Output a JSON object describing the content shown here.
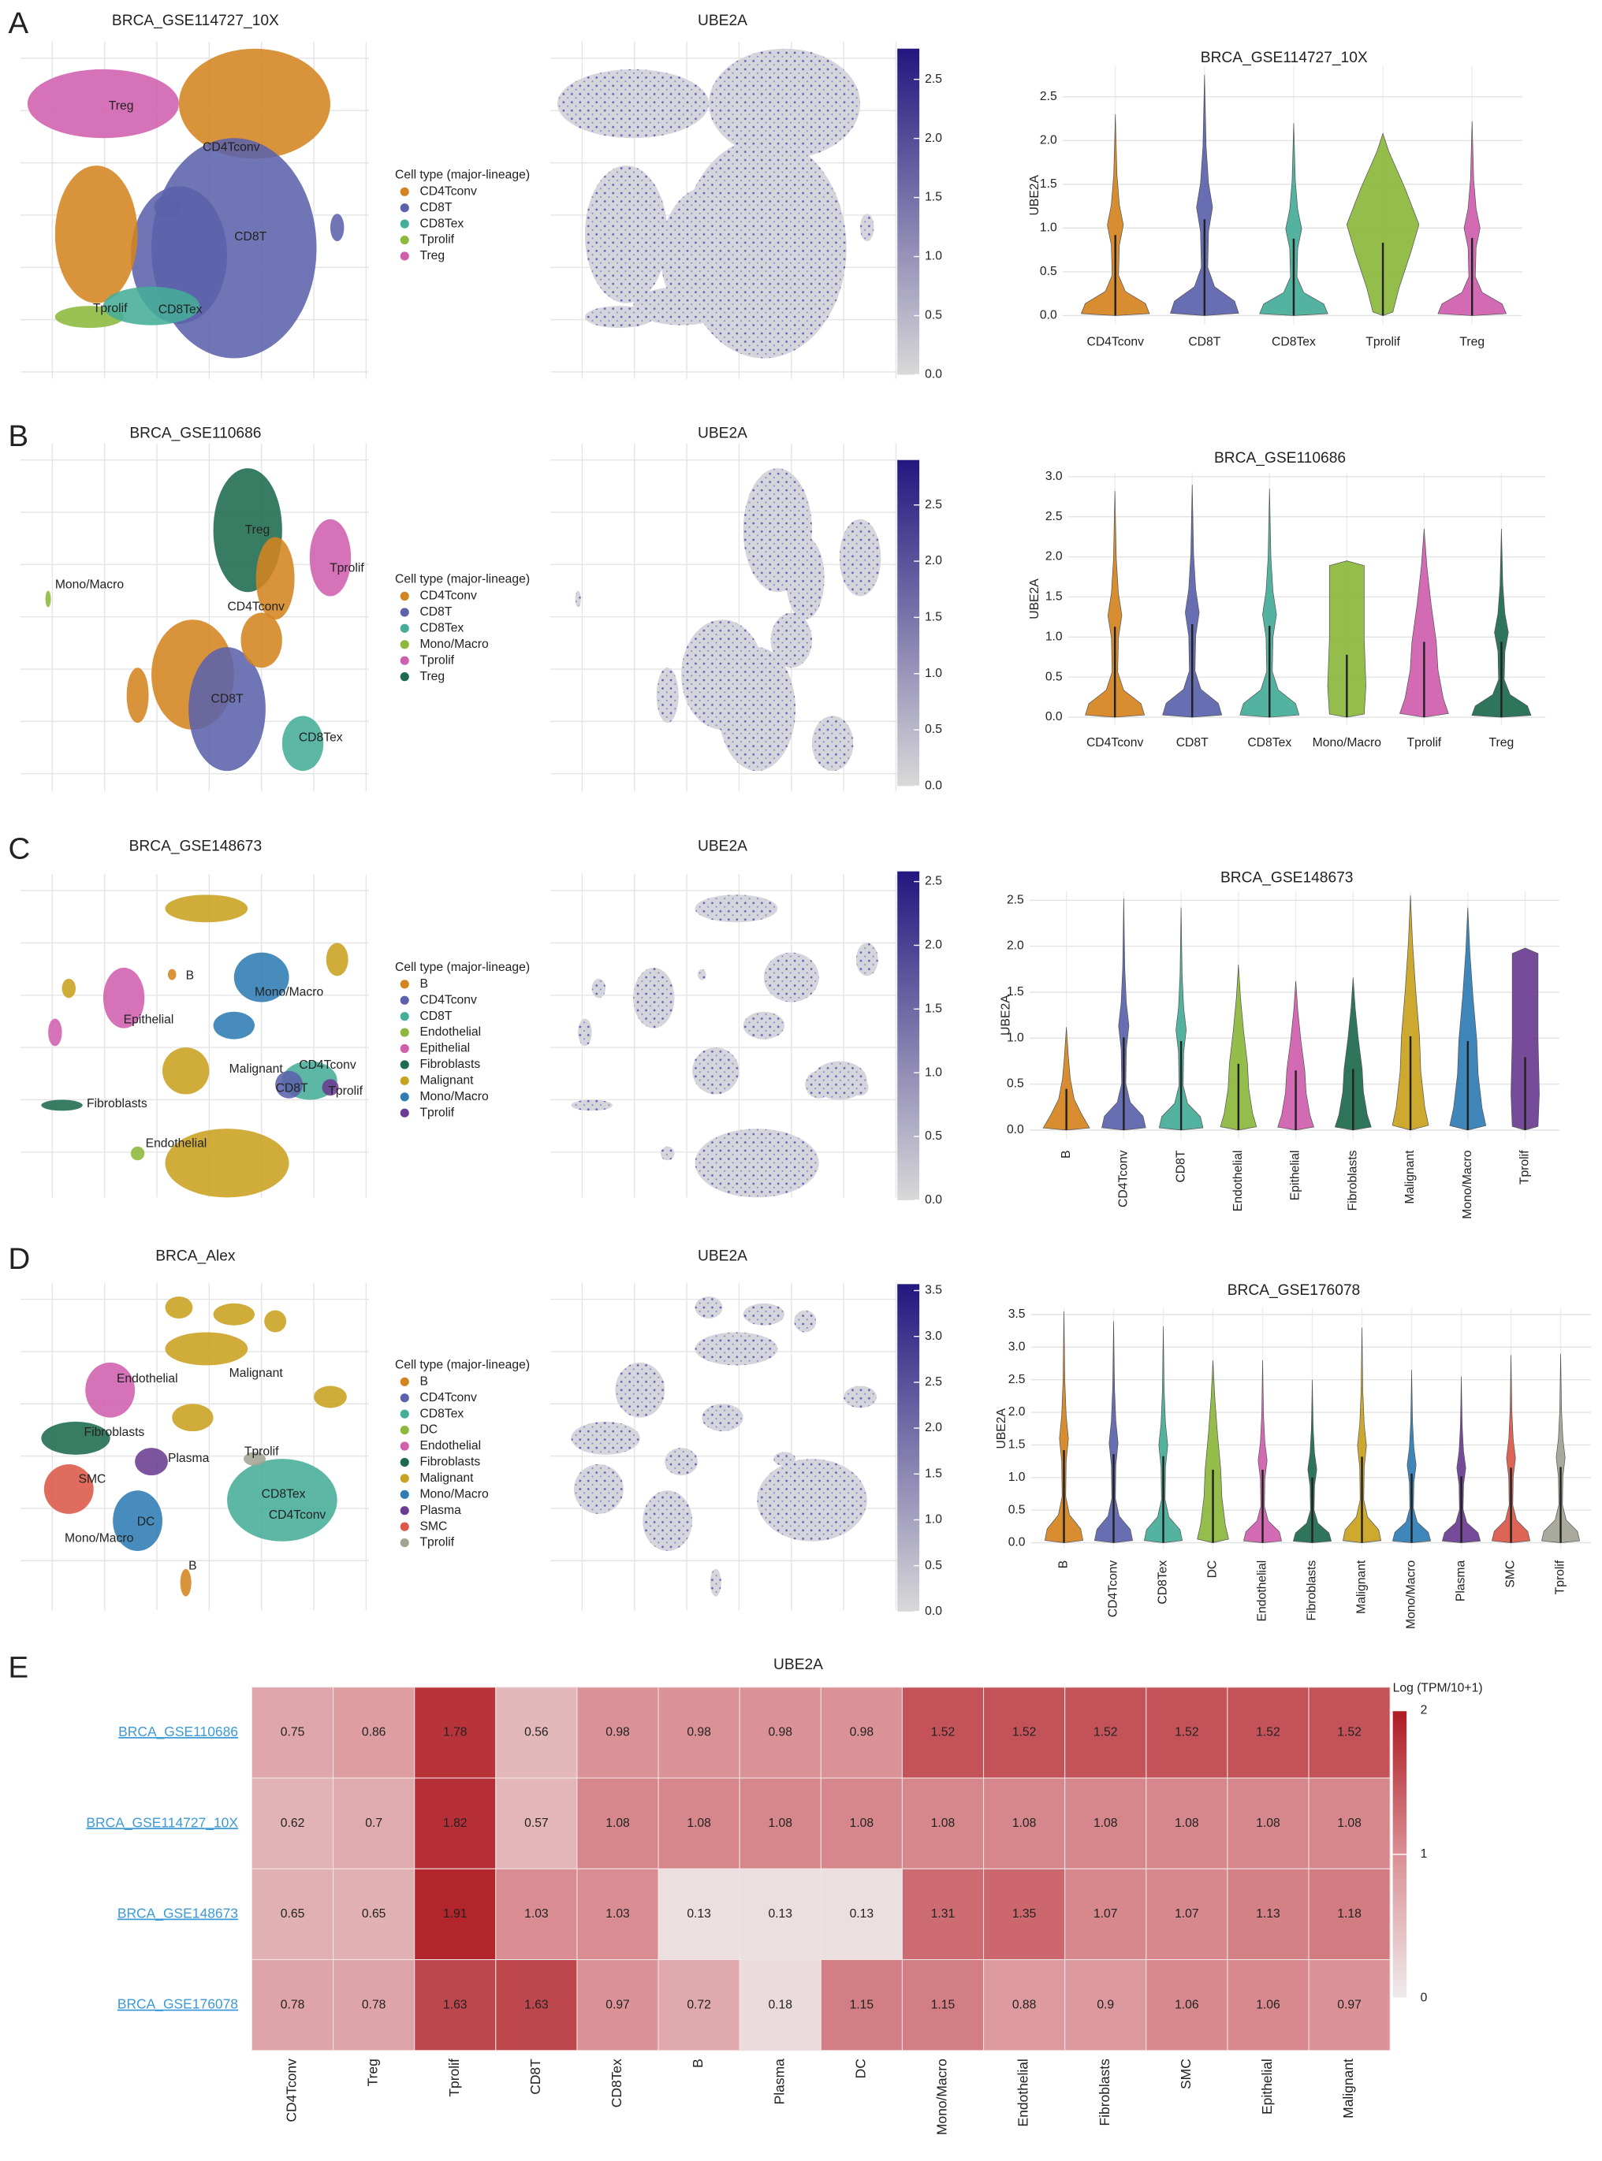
{
  "chart_data": [
    {
      "type": "umap",
      "panel_label": "A",
      "title": "BRCA_GSE114727_10X",
      "legend_title": "Cell type (major-lineage)",
      "series": [
        {
          "name": "CD4Tconv",
          "color": "#d4841f"
        },
        {
          "name": "CD8T",
          "color": "#5b62ab"
        },
        {
          "name": "CD8Tex",
          "color": "#45ad98"
        },
        {
          "name": "Tprolif",
          "color": "#8cb83c"
        },
        {
          "name": "Treg",
          "color": "#d05fae"
        }
      ],
      "cluster_labels": [
        "Treg",
        "CD4Tconv",
        "CD8T",
        "Tprolif",
        "CD8Tex"
      ]
    },
    {
      "type": "feature",
      "title": "UBE2A",
      "clim": [
        0,
        2.76
      ],
      "colors": [
        "#d9d9d9",
        "#22177f"
      ],
      "cticks": [
        {
          "value": 0,
          "label": "0.0"
        },
        0.5,
        {
          "value": 1,
          "label": "1.0"
        },
        1.5,
        {
          "value": 2,
          "label": "2.0"
        },
        2.5
      ]
    },
    {
      "type": "violin",
      "title": "BRCA_GSE114727_10X",
      "ylabel": "UBE2A",
      "rotate_labels": false,
      "categories": [
        "CD4Tconv",
        "CD8T",
        "CD8Tex",
        "Tprolif",
        "Treg"
      ],
      "colors": [
        "#d4841f",
        "#5b62ab",
        "#45ad98",
        "#8cb83c",
        "#d05fae"
      ],
      "values": [
        2.3,
        2.75,
        2.2,
        2.08,
        2.22
      ],
      "ylim": [
        -0.1,
        2.85
      ],
      "yticks": [
        {
          "value": 0,
          "label": "0.0"
        },
        0.5,
        {
          "value": 1,
          "label": "1.0"
        },
        1.5,
        {
          "value": 2,
          "label": "2.0"
        },
        2.5
      ],
      "grid": true
    },
    {
      "type": "umap",
      "panel_label": "B",
      "title": "BRCA_GSE110686",
      "legend_title": "Cell type (major-lineage)",
      "series": [
        {
          "name": "CD4Tconv",
          "color": "#d4841f"
        },
        {
          "name": "CD8T",
          "color": "#5b62ab"
        },
        {
          "name": "CD8Tex",
          "color": "#45ad98"
        },
        {
          "name": "Mono/Macro",
          "color": "#8cb83c"
        },
        {
          "name": "Tprolif",
          "color": "#d05fae"
        },
        {
          "name": "Treg",
          "color": "#1e6a4f"
        }
      ],
      "cluster_labels": [
        "Treg",
        "Tprolif",
        "Mono/Macro",
        "CD4Tconv",
        "CD8T",
        "CD8Tex"
      ]
    },
    {
      "type": "feature",
      "title": "UBE2A",
      "clim": [
        0,
        2.9
      ],
      "colors": [
        "#d9d9d9",
        "#22177f"
      ],
      "cticks": [
        {
          "value": 0,
          "label": "0.0"
        },
        0.5,
        {
          "value": 1,
          "label": "1.0"
        },
        1.5,
        {
          "value": 2,
          "label": "2.0"
        },
        2.5
      ]
    },
    {
      "type": "violin",
      "title": "BRCA_GSE110686",
      "ylabel": "UBE2A",
      "rotate_labels": false,
      "categories": [
        "CD4Tconv",
        "CD8T",
        "CD8Tex",
        "Mono/Macro",
        "Tprolif",
        "Treg"
      ],
      "colors": [
        "#d4841f",
        "#5b62ab",
        "#45ad98",
        "#8cb83c",
        "#d05fae",
        "#1e6a4f"
      ],
      "values": [
        2.82,
        2.9,
        2.85,
        1.95,
        2.35,
        2.35
      ],
      "ylim": [
        -0.1,
        3.05
      ],
      "yticks": [
        {
          "value": 0,
          "label": "0.0"
        },
        0.5,
        {
          "value": 1,
          "label": "1.0"
        },
        1.5,
        {
          "value": 2,
          "label": "2.0"
        },
        2.5,
        {
          "value": 3,
          "label": "3.0"
        }
      ],
      "grid": true
    },
    {
      "type": "umap",
      "panel_label": "C",
      "title": "BRCA_GSE148673",
      "legend_title": "Cell type (major-lineage)",
      "series": [
        {
          "name": "B",
          "color": "#d4841f"
        },
        {
          "name": "CD4Tconv",
          "color": "#5b62ab"
        },
        {
          "name": "CD8T",
          "color": "#45ad98"
        },
        {
          "name": "Endothelial",
          "color": "#8cb83c"
        },
        {
          "name": "Epithelial",
          "color": "#d05fae"
        },
        {
          "name": "Fibroblasts",
          "color": "#1e6a4f"
        },
        {
          "name": "Malignant",
          "color": "#c9a21f"
        },
        {
          "name": "Mono/Macro",
          "color": "#2f7cb5"
        },
        {
          "name": "Tprolif",
          "color": "#6b3c91"
        }
      ],
      "cluster_labels": [
        "B",
        "Mono/Macro",
        "Epithelial",
        "Malignant",
        "CD4Tconv",
        "CD8T",
        "Tprolif",
        "Fibroblasts",
        "Endothelial"
      ]
    },
    {
      "type": "feature",
      "title": "UBE2A",
      "clim": [
        0,
        2.58
      ],
      "colors": [
        "#d9d9d9",
        "#22177f"
      ],
      "cticks": [
        {
          "value": 0,
          "label": "0.0"
        },
        0.5,
        {
          "value": 1,
          "label": "1.0"
        },
        1.5,
        {
          "value": 2,
          "label": "2.0"
        },
        2.5
      ]
    },
    {
      "type": "violin",
      "title": "BRCA_GSE148673",
      "ylabel": "UBE2A",
      "rotate_labels": true,
      "categories": [
        "B",
        "CD4Tconv",
        "CD8T",
        "Endothelial",
        "Epithelial",
        "Fibroblasts",
        "Malignant",
        "Mono/Macro",
        "Tprolif"
      ],
      "colors": [
        "#d4841f",
        "#5b62ab",
        "#45ad98",
        "#8cb83c",
        "#d05fae",
        "#1e6a4f",
        "#c9a21f",
        "#2f7cb5",
        "#6b3c91"
      ],
      "values": [
        1.12,
        2.52,
        2.42,
        1.8,
        1.62,
        1.66,
        2.55,
        2.42,
        1.98
      ],
      "ylim": [
        -0.1,
        2.6
      ],
      "yticks": [
        {
          "value": 0,
          "label": "0.0"
        },
        0.5,
        {
          "value": 1,
          "label": "1.0"
        },
        1.5,
        {
          "value": 2,
          "label": "2.0"
        },
        2.5
      ],
      "grid": true
    },
    {
      "type": "umap",
      "panel_label": "D",
      "title": "BRCA_Alex",
      "legend_title": "Cell type (major-lineage)",
      "series": [
        {
          "name": "B",
          "color": "#d4841f"
        },
        {
          "name": "CD4Tconv",
          "color": "#5b62ab"
        },
        {
          "name": "CD8Tex",
          "color": "#45ad98"
        },
        {
          "name": "DC",
          "color": "#8cb83c"
        },
        {
          "name": "Endothelial",
          "color": "#d05fae"
        },
        {
          "name": "Fibroblasts",
          "color": "#1e6a4f"
        },
        {
          "name": "Malignant",
          "color": "#c9a21f"
        },
        {
          "name": "Mono/Macro",
          "color": "#2f7cb5"
        },
        {
          "name": "Plasma",
          "color": "#6b3c91"
        },
        {
          "name": "SMC",
          "color": "#dc5848"
        },
        {
          "name": "Tprolif",
          "color": "#a3a394"
        }
      ],
      "cluster_labels": [
        "Endothelial",
        "Malignant",
        "Fibroblasts",
        "Plasma",
        "Tprolif",
        "SMC",
        "CD8Tex",
        "DC",
        "CD4Tconv",
        "Mono/Macro",
        "B"
      ]
    },
    {
      "type": "feature",
      "title": "UBE2A",
      "clim": [
        0,
        3.57
      ],
      "colors": [
        "#d9d9d9",
        "#22177f"
      ],
      "cticks": [
        {
          "value": 0,
          "label": "0.0"
        },
        0.5,
        {
          "value": 1,
          "label": "1.0"
        },
        1.5,
        {
          "value": 2,
          "label": "2.0"
        },
        2.5,
        {
          "value": 3,
          "label": "3.0"
        },
        3.5
      ]
    },
    {
      "type": "violin",
      "title": "BRCA_GSE176078",
      "ylabel": "UBE2A",
      "rotate_labels": true,
      "categories": [
        "B",
        "CD4Tconv",
        "CD8Tex",
        "DC",
        "Endothelial",
        "Fibroblasts",
        "Malignant",
        "Mono/Macro",
        "Plasma",
        "SMC",
        "Tprolif"
      ],
      "colors": [
        "#d4841f",
        "#5b62ab",
        "#45ad98",
        "#8cb83c",
        "#d05fae",
        "#1e6a4f",
        "#c9a21f",
        "#2f7cb5",
        "#6b3c91",
        "#dc5848",
        "#a3a394"
      ],
      "values": [
        3.55,
        3.4,
        3.32,
        2.8,
        2.8,
        2.5,
        3.3,
        2.65,
        2.55,
        2.88,
        2.9
      ],
      "ylim": [
        -0.1,
        3.6
      ],
      "yticks": [
        {
          "value": 0,
          "label": "0.0"
        },
        0.5,
        {
          "value": 1,
          "label": "1.0"
        },
        1.5,
        {
          "value": 2,
          "label": "2.0"
        },
        2.5,
        {
          "value": 3,
          "label": "3.0"
        },
        3.5
      ],
      "grid": true
    },
    {
      "type": "heatmap",
      "panel_label": "E",
      "title": "UBE2A",
      "legend_title": "Log (TPM/10+1)",
      "rows": [
        "BRCA_GSE110686",
        "BRCA_GSE114727_10X",
        "BRCA_GSE148673",
        "BRCA_GSE176078"
      ],
      "columns": [
        "CD4Tconv",
        "Treg",
        "Tprolif",
        "CD8T",
        "CD8Tex",
        "B",
        "Plasma",
        "DC",
        "Mono/Macro",
        "Endothelial",
        "Fibroblasts",
        "SMC",
        "Epithelial",
        "Malignant"
      ],
      "values": [
        [
          0.75,
          0.86,
          1.78,
          0.56,
          0.98,
          0.98,
          0.98,
          0.98,
          1.52,
          1.52,
          1.52,
          1.52,
          1.52,
          1.52
        ],
        [
          0.62,
          0.7,
          1.82,
          0.57,
          1.08,
          1.08,
          1.08,
          1.08,
          1.08,
          1.08,
          1.08,
          1.08,
          1.08,
          1.08
        ],
        [
          0.65,
          0.65,
          1.91,
          1.03,
          1.03,
          0.13,
          0.13,
          0.13,
          1.31,
          1.35,
          1.07,
          1.07,
          1.13,
          1.18
        ],
        [
          0.78,
          0.78,
          1.63,
          1.63,
          0.97,
          0.72,
          0.18,
          1.15,
          1.15,
          0.88,
          0.9,
          1.06,
          1.06,
          0.97
        ]
      ],
      "clim": [
        0,
        2
      ],
      "cticks": [
        0,
        1,
        2
      ],
      "colors": [
        "#efebeb",
        "#da9095",
        "#ae1a22"
      ]
    }
  ]
}
